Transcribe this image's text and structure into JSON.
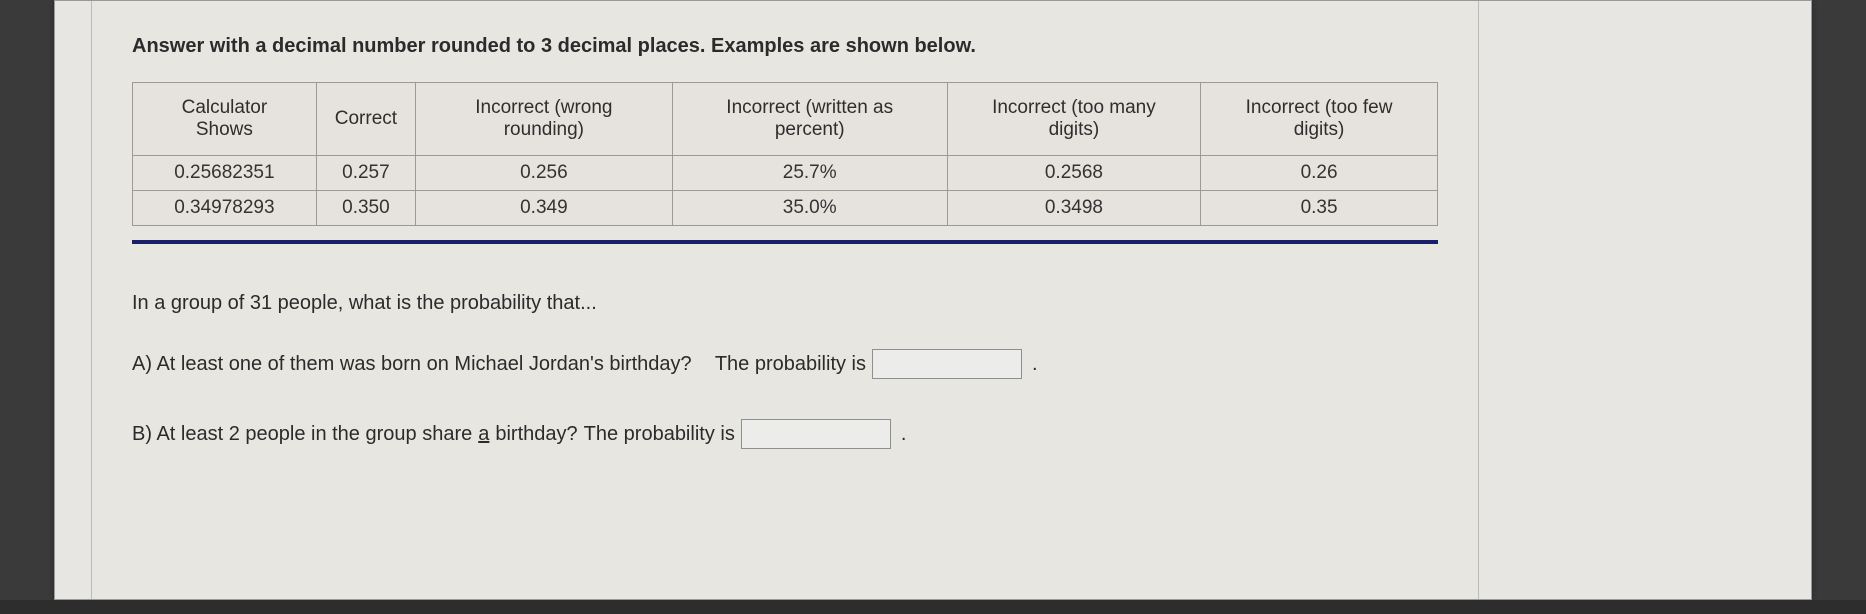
{
  "instruction": "Answer with a decimal number rounded to 3 decimal places. Examples are shown below.",
  "table": {
    "columns": [
      "Calculator Shows",
      "Correct",
      "Incorrect (wrong rounding)",
      "Incorrect (written as percent)",
      "Incorrect (too many digits)",
      "Incorrect (too few digits)"
    ],
    "rows": [
      [
        "0.25682351",
        "0.257",
        "0.256",
        "25.7%",
        "0.2568",
        "0.26"
      ],
      [
        "0.34978293",
        "0.350",
        "0.349",
        "35.0%",
        "0.3498",
        "0.35"
      ]
    ],
    "border_color": "#9a9a98",
    "rule_color": "#1a1f6a"
  },
  "question_intro": "In a group of 31 people, what is the probability that...",
  "partA": {
    "label": "A) At least one of them was born on Michael Jordan's birthday?",
    "prompt": "The probability is",
    "value": "",
    "period": "."
  },
  "partB": {
    "label_prefix": "B) At least 2 people in the group share ",
    "label_underlined": "a",
    "label_suffix": " birthday?",
    "prompt": "The probability is",
    "value": "",
    "period": "."
  },
  "colors": {
    "page_bg": "#e8e6e2",
    "outer_bg": "#3a3a3a",
    "text": "#2b2b2b"
  }
}
